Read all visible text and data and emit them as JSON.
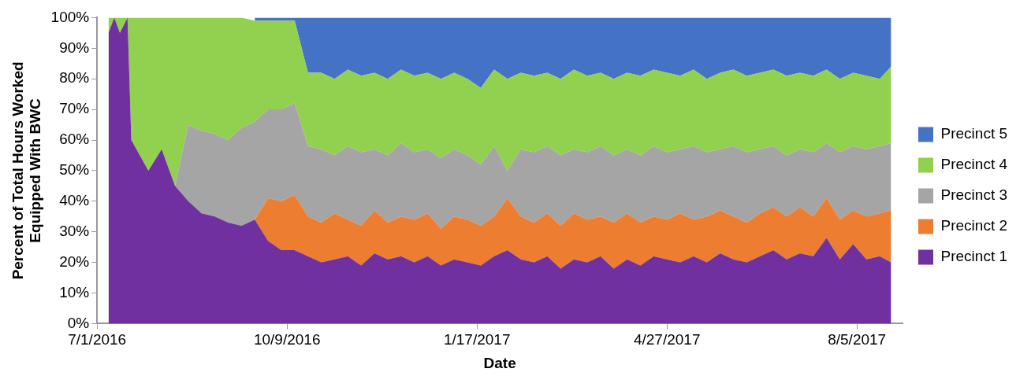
{
  "chart_data": {
    "type": "area",
    "stacked": true,
    "xlabel": "Date",
    "ylabel": "Percent of Total Hours Worked\nEquipped With BWC",
    "legend": "right",
    "xlim": [
      "2016-07-01",
      "2017-08-29"
    ],
    "xticks": [
      {
        "value": "2016-07-01",
        "label": "7/1/2016"
      },
      {
        "value": "2016-10-09",
        "label": "10/9/2016"
      },
      {
        "value": "2017-01-17",
        "label": "1/17/2017"
      },
      {
        "value": "2017-04-27",
        "label": "4/27/2017"
      },
      {
        "value": "2017-08-05",
        "label": "8/5/2017"
      }
    ],
    "ylim": [
      0,
      100
    ],
    "yticks": [
      {
        "value": 0,
        "label": "0%"
      },
      {
        "value": 10,
        "label": "10%"
      },
      {
        "value": 20,
        "label": "20%"
      },
      {
        "value": 30,
        "label": "30%"
      },
      {
        "value": 40,
        "label": "40%"
      },
      {
        "value": 50,
        "label": "50%"
      },
      {
        "value": 60,
        "label": "60%"
      },
      {
        "value": 70,
        "label": "70%"
      },
      {
        "value": 80,
        "label": "80%"
      },
      {
        "value": 90,
        "label": "90%"
      },
      {
        "value": 100,
        "label": "100%"
      }
    ],
    "x": [
      "2016-07-07",
      "2016-07-10",
      "2016-07-13",
      "2016-07-17",
      "2016-07-19",
      "2016-07-28",
      "2016-08-04",
      "2016-08-11",
      "2016-08-18",
      "2016-08-25",
      "2016-09-01",
      "2016-09-08",
      "2016-09-15",
      "2016-09-22",
      "2016-09-29",
      "2016-10-06",
      "2016-10-13",
      "2016-10-20",
      "2016-10-27",
      "2016-11-03",
      "2016-11-10",
      "2016-11-17",
      "2016-11-24",
      "2016-12-01",
      "2016-12-08",
      "2016-12-15",
      "2016-12-22",
      "2016-12-29",
      "2017-01-05",
      "2017-01-12",
      "2017-01-19",
      "2017-01-26",
      "2017-02-02",
      "2017-02-09",
      "2017-02-16",
      "2017-02-23",
      "2017-03-02",
      "2017-03-09",
      "2017-03-16",
      "2017-03-23",
      "2017-03-30",
      "2017-04-06",
      "2017-04-13",
      "2017-04-20",
      "2017-04-27",
      "2017-05-04",
      "2017-05-11",
      "2017-05-18",
      "2017-05-25",
      "2017-06-01",
      "2017-06-08",
      "2017-06-15",
      "2017-06-22",
      "2017-06-29",
      "2017-07-06",
      "2017-07-13",
      "2017-07-20",
      "2017-07-27",
      "2017-08-03",
      "2017-08-10",
      "2017-08-17",
      "2017-08-23"
    ],
    "series": [
      {
        "name": "Precinct 1",
        "color": "#7030a0",
        "values": [
          95,
          100,
          95,
          100,
          60,
          50,
          57,
          45,
          40,
          36,
          35,
          33,
          32,
          34,
          27,
          24,
          24,
          22,
          20,
          21,
          22,
          19,
          23,
          21,
          22,
          20,
          22,
          19,
          21,
          20,
          19,
          22,
          24,
          21,
          20,
          22,
          18,
          21,
          20,
          22,
          18,
          21,
          19,
          22,
          21,
          20,
          22,
          20,
          23,
          21,
          20,
          22,
          24,
          21,
          23,
          22,
          28,
          21,
          26,
          21,
          22,
          20
        ]
      },
      {
        "name": "Precinct 2",
        "color": "#ed7d31",
        "values": [
          0,
          0,
          0,
          0,
          0,
          0,
          0,
          0,
          0,
          0,
          0,
          0,
          0,
          0,
          14,
          16,
          18,
          13,
          13,
          15,
          12,
          13,
          14,
          12,
          13,
          14,
          14,
          12,
          14,
          14,
          13,
          13,
          17,
          14,
          13,
          14,
          14,
          15,
          14,
          13,
          15,
          15,
          14,
          13,
          13,
          16,
          12,
          15,
          14,
          14,
          13,
          14,
          14,
          14,
          15,
          13,
          13,
          13,
          11,
          14,
          14,
          17
        ]
      },
      {
        "name": "Precinct 3",
        "color": "#a5a5a5",
        "values": [
          0,
          0,
          0,
          0,
          0,
          0,
          0,
          0,
          25,
          27,
          27,
          27,
          32,
          32,
          29,
          30,
          30,
          23,
          24,
          19,
          24,
          24,
          20,
          22,
          24,
          22,
          21,
          23,
          22,
          21,
          20,
          23,
          9,
          22,
          23,
          22,
          23,
          21,
          22,
          23,
          22,
          21,
          22,
          23,
          22,
          21,
          24,
          21,
          20,
          23,
          23,
          21,
          20,
          20,
          19,
          21,
          18,
          22,
          21,
          22,
          22,
          22
        ]
      },
      {
        "name": "Precinct 4",
        "color": "#92d050",
        "values": [
          5,
          0,
          5,
          0,
          40,
          50,
          43,
          55,
          35,
          37,
          38,
          40,
          36,
          33,
          29,
          29,
          27,
          24,
          25,
          25,
          25,
          25,
          25,
          25,
          24,
          25,
          25,
          26,
          25,
          25,
          25,
          25,
          30,
          25,
          25,
          24,
          25,
          26,
          25,
          24,
          25,
          25,
          26,
          25,
          26,
          24,
          25,
          24,
          25,
          25,
          25,
          25,
          25,
          26,
          25,
          25,
          24,
          24,
          24,
          24,
          22,
          25
        ]
      },
      {
        "name": "Precinct 5",
        "color": "#4472c4",
        "values": [
          null,
          null,
          null,
          null,
          null,
          null,
          null,
          null,
          null,
          null,
          null,
          null,
          null,
          1,
          1,
          1,
          1,
          18,
          18,
          20,
          17,
          19,
          18,
          20,
          17,
          19,
          18,
          20,
          18,
          20,
          23,
          17,
          20,
          18,
          19,
          18,
          20,
          17,
          19,
          18,
          20,
          18,
          19,
          17,
          18,
          19,
          17,
          20,
          18,
          17,
          19,
          18,
          17,
          19,
          18,
          19,
          17,
          20,
          18,
          19,
          20,
          16
        ]
      }
    ]
  }
}
